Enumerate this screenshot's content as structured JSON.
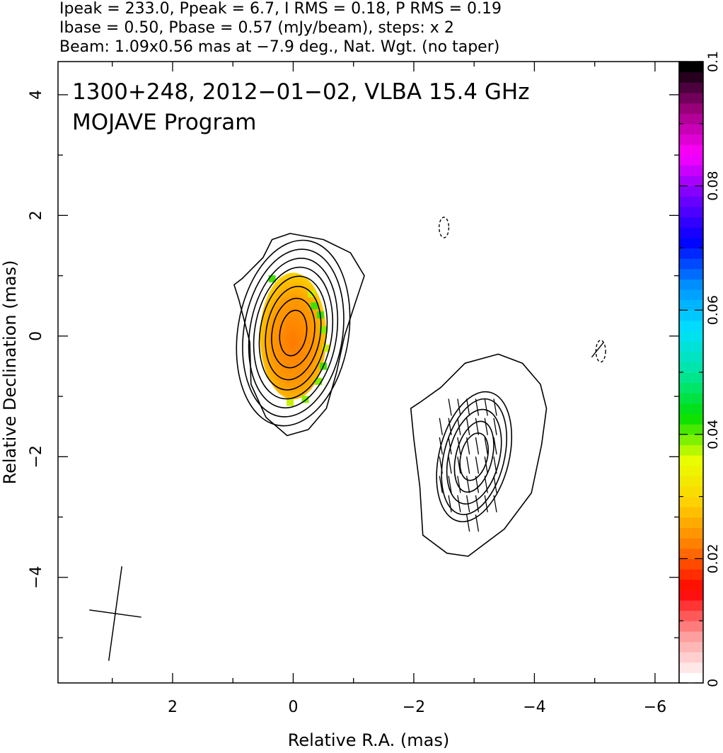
{
  "header": {
    "line1": "Ipeak = 233.0, Ppeak = 6.7, I RMS = 0.18, P RMS = 0.19",
    "line2": "Ibase = 0.50, Pbase = 0.57 (mJy/beam), steps: x 2",
    "line3": "Beam: 1.09x0.56 mas at −7.9 deg., Nat. Wgt. (no taper)"
  },
  "plot_title": {
    "line1": "1300+248, 2012−01−02, VLBA 15.4 GHz",
    "line2": "MOJAVE Program"
  },
  "chart_data": {
    "type": "heatmap",
    "xlabel": "Relative R.A. (mas)",
    "ylabel": "Relative Declination (mas)",
    "xlim": [
      3.9,
      -6.4
    ],
    "ylim": [
      -5.75,
      4.55
    ],
    "x_ticks": [
      2,
      0,
      -2,
      -4,
      -6
    ],
    "x_tick_labels": [
      "2",
      "0",
      "−2",
      "−4",
      "−6"
    ],
    "y_ticks": [
      4,
      2,
      0,
      -2,
      -4
    ],
    "y_tick_labels": [
      "4",
      "2",
      "0",
      "−2",
      "−4"
    ],
    "colorbar": {
      "range": [
        0,
        0.1
      ],
      "ticks": [
        0,
        0.02,
        0.04,
        0.06,
        0.08,
        0.1
      ],
      "tick_labels": [
        "0",
        "0.02",
        "0.04",
        "0.06",
        "0.08",
        "0.1"
      ],
      "colors": [
        "#ffffff",
        "#ff9999",
        "#ff0000",
        "#ff7a00",
        "#ffd000",
        "#e8ff00",
        "#00e000",
        "#00e6a0",
        "#00e0ff",
        "#0090ff",
        "#0000ff",
        "#7000ff",
        "#ff00ff",
        "#a00080",
        "#000000"
      ]
    },
    "components": [
      {
        "name": "core",
        "center": [
          0.0,
          0.0
        ],
        "contours": [
          {
            "level": 1,
            "pts": [
              [
                0.05,
                1.7
              ],
              [
                -0.5,
                1.6
              ],
              [
                -0.95,
                1.38
              ],
              [
                -1.18,
                1.0
              ],
              [
                -1.03,
                0.55
              ],
              [
                -0.85,
                0.0
              ],
              [
                -0.72,
                -0.6
              ],
              [
                -0.55,
                -1.2
              ],
              [
                -0.25,
                -1.55
              ],
              [
                0.1,
                -1.65
              ],
              [
                0.45,
                -1.35
              ],
              [
                0.7,
                -0.8
              ],
              [
                0.72,
                -0.1
              ],
              [
                0.9,
                0.6
              ],
              [
                0.98,
                0.85
              ],
              [
                0.85,
                0.95
              ],
              [
                0.5,
                1.3
              ],
              [
                0.35,
                1.6
              ]
            ]
          },
          {
            "center": [
              0.0,
              0.05
            ],
            "rx": [
              0.92,
              0.82,
              0.72,
              0.64,
              0.55,
              0.45,
              0.35,
              0.22
            ],
            "ry": [
              1.55,
              1.4,
              1.25,
              1.1,
              0.95,
              0.78,
              0.58,
              0.38
            ],
            "rot": 9
          }
        ],
        "polarization_fill": {
          "center": [
            0.0,
            0.0
          ],
          "rx": 0.55,
          "ry": 1.05,
          "frac_core": 0.02,
          "frac_edge": 0.045
        }
      },
      {
        "name": "jet",
        "center": [
          -3.0,
          -2.0
        ],
        "contours": [
          {
            "level": 1,
            "pts": [
              [
                -2.15,
                -3.3
              ],
              [
                -2.55,
                -3.6
              ],
              [
                -2.9,
                -3.65
              ],
              [
                -3.5,
                -3.2
              ],
              [
                -3.95,
                -2.6
              ],
              [
                -4.12,
                -1.8
              ],
              [
                -4.2,
                -1.2
              ],
              [
                -4.1,
                -0.8
              ],
              [
                -3.8,
                -0.45
              ],
              [
                -3.4,
                -0.3
              ],
              [
                -2.85,
                -0.45
              ],
              [
                -2.45,
                -0.85
              ],
              [
                -2.1,
                -1.1
              ],
              [
                -1.95,
                -1.2
              ],
              [
                -2.0,
                -1.7
              ],
              [
                -2.1,
                -2.5
              ]
            ]
          },
          {
            "center": [
              -3.0,
              -2.0
            ],
            "rx": [
              0.58,
              0.5,
              0.42,
              0.3,
              0.22
            ],
            "ry": [
              1.1,
              0.98,
              0.8,
              0.6,
              0.4
            ],
            "rot": 14
          }
        ],
        "evpa": {
          "x_cols": [
            -2.45,
            -2.6,
            -2.75,
            -2.9,
            -3.05,
            -3.2,
            -3.35
          ],
          "y_min": -3.1,
          "y_max": -0.95,
          "step": 0.32
        }
      }
    ],
    "negative_contours": [
      {
        "center": [
          -2.5,
          1.8
        ],
        "rx": 0.08,
        "ry": 0.17
      },
      {
        "center": [
          -5.1,
          -0.25
        ],
        "rx": 0.08,
        "ry": 0.18
      }
    ],
    "beam": {
      "center": [
        2.95,
        -4.6
      ],
      "major_mas": 1.09,
      "minor_mas": 0.56,
      "pa_deg": -7.9
    }
  }
}
